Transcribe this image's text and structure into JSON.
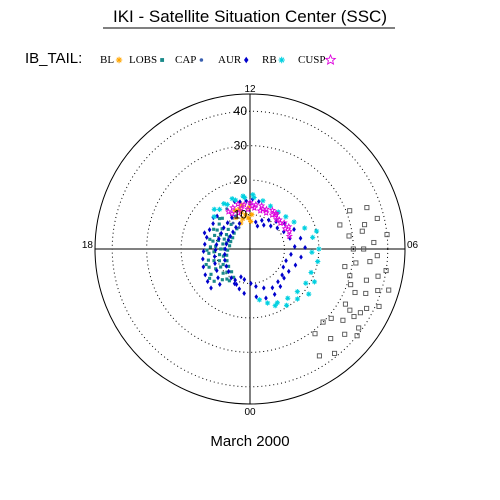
{
  "chart_data": {
    "type": "scatter",
    "projection": "polar",
    "title": "IKI - Satellite Situation Center (SSC)",
    "subtitle": "March 2000",
    "legend": {
      "prefix": "IB_TAIL:",
      "placement": "top-left"
    },
    "radial_axis": {
      "range": [
        0,
        45
      ],
      "ticks": [
        10,
        20,
        30,
        40
      ],
      "tick_labels": [
        "10",
        "20",
        "30",
        "40"
      ],
      "grid": "dotted"
    },
    "angular_axis": {
      "labels": [
        {
          "text": "12",
          "mlt": 12
        },
        {
          "text": "06",
          "mlt": 6
        },
        {
          "text": "00",
          "mlt": 0
        },
        {
          "text": "18",
          "mlt": 18
        }
      ]
    },
    "series": [
      {
        "name": "BL",
        "color": "#ffa500",
        "marker": "asterisk",
        "points": [
          [
            12.2,
            9
          ],
          [
            12.5,
            10
          ],
          [
            12.9,
            11
          ],
          [
            13.3,
            8
          ],
          [
            13.0,
            12
          ],
          [
            11.8,
            10
          ],
          [
            12.7,
            13
          ],
          [
            13.6,
            10
          ],
          [
            12.1,
            12
          ],
          [
            12.9,
            9
          ],
          [
            13.4,
            12
          ],
          [
            11.9,
            8
          ]
        ]
      },
      {
        "name": "LOBS",
        "color": "#1a8a8a",
        "marker": "square",
        "points": [
          [
            14.8,
            12
          ],
          [
            15.4,
            11.5
          ],
          [
            16.0,
            11
          ],
          [
            16.6,
            11
          ],
          [
            17.2,
            11
          ],
          [
            17.8,
            11.5
          ],
          [
            18.4,
            12
          ],
          [
            19.0,
            12.5
          ],
          [
            19.6,
            13
          ],
          [
            20.2,
            13.5
          ],
          [
            20.8,
            14
          ],
          [
            14.5,
            9
          ],
          [
            15.2,
            8.5
          ],
          [
            15.9,
            8
          ],
          [
            16.6,
            8
          ],
          [
            17.3,
            8
          ],
          [
            18.0,
            8.5
          ],
          [
            18.7,
            9
          ],
          [
            19.4,
            9.5
          ],
          [
            20.1,
            10
          ],
          [
            20.8,
            10.5
          ],
          [
            21.5,
            11
          ],
          [
            14.2,
            7
          ],
          [
            15.0,
            6.5
          ],
          [
            15.8,
            6
          ],
          [
            16.6,
            6
          ],
          [
            17.4,
            6
          ],
          [
            18.2,
            6.5
          ],
          [
            19.0,
            7
          ],
          [
            19.8,
            7.5
          ],
          [
            20.6,
            8
          ],
          [
            21.4,
            8.5
          ],
          [
            15.6,
            10
          ],
          [
            16.3,
            9.5
          ],
          [
            17.0,
            9.5
          ],
          [
            17.7,
            10
          ],
          [
            18.3,
            10.5
          ],
          [
            19.2,
            11
          ],
          [
            20.0,
            11.5
          ],
          [
            16.0,
            7
          ],
          [
            17.0,
            7
          ],
          [
            18.0,
            7.5
          ],
          [
            19.0,
            8
          ],
          [
            20.0,
            9
          ],
          [
            21.0,
            9.5
          ],
          [
            15.0,
            12.5
          ],
          [
            16.1,
            12
          ],
          [
            17.1,
            12
          ],
          [
            18.1,
            12.5
          ],
          [
            19.3,
            13.5
          ],
          [
            20.4,
            14.5
          ],
          [
            21.2,
            12
          ],
          [
            21.8,
            11
          ],
          [
            22.0,
            9.5
          ]
        ]
      },
      {
        "name": "CAP",
        "color": "#3a60b0",
        "marker": "dot",
        "points": [
          [
            14.0,
            13.5
          ],
          [
            13.6,
            10.5
          ],
          [
            14.2,
            9
          ],
          [
            13.8,
            7
          ]
        ]
      },
      {
        "name": "AUR",
        "color": "#0000cc",
        "marker": "diamond",
        "points": [
          [
            15.0,
            13.5
          ],
          [
            15.7,
            13
          ],
          [
            16.3,
            13
          ],
          [
            17.0,
            13
          ],
          [
            17.6,
            13.2
          ],
          [
            18.2,
            13.5
          ],
          [
            18.8,
            14
          ],
          [
            19.4,
            14.5
          ],
          [
            20.0,
            15
          ],
          [
            20.5,
            15.5
          ],
          [
            21.0,
            16
          ],
          [
            14.0,
            10.5
          ],
          [
            14.7,
            10
          ],
          [
            15.4,
            9.8
          ],
          [
            16.1,
            9.5
          ],
          [
            16.8,
            9.5
          ],
          [
            17.5,
            9.8
          ],
          [
            18.1,
            10
          ],
          [
            18.8,
            10.5
          ],
          [
            19.5,
            11
          ],
          [
            20.2,
            11.5
          ],
          [
            20.8,
            12.5
          ],
          [
            21.3,
            13.5
          ],
          [
            13.5,
            8
          ],
          [
            14.2,
            7.5
          ],
          [
            15.0,
            7
          ],
          [
            15.8,
            6.8
          ],
          [
            16.5,
            6.8
          ],
          [
            17.2,
            7
          ],
          [
            18.0,
            7.2
          ],
          [
            18.8,
            7.5
          ],
          [
            19.6,
            8
          ],
          [
            20.4,
            8.5
          ],
          [
            21.1,
            9
          ],
          [
            21.8,
            10
          ],
          [
            22.4,
            11
          ],
          [
            11.2,
            8
          ],
          [
            10.5,
            9
          ],
          [
            9.8,
            10
          ],
          [
            9.1,
            11
          ],
          [
            8.4,
            12.5
          ],
          [
            7.6,
            14
          ],
          [
            6.8,
            15
          ],
          [
            6.1,
            16
          ],
          [
            5.4,
            15
          ],
          [
            4.7,
            14
          ],
          [
            4.0,
            13
          ],
          [
            3.3,
            13
          ],
          [
            2.6,
            14
          ],
          [
            1.9,
            15
          ],
          [
            1.2,
            15
          ],
          [
            0.5,
            14
          ],
          [
            23.5,
            13
          ],
          [
            23.0,
            12
          ],
          [
            22.6,
            11
          ],
          [
            22.3,
            10
          ],
          [
            10.8,
            7
          ],
          [
            10.0,
            8
          ],
          [
            9.2,
            9
          ],
          [
            8.5,
            10
          ],
          [
            7.8,
            11
          ],
          [
            7.0,
            12
          ],
          [
            6.2,
            13
          ],
          [
            5.5,
            12
          ],
          [
            4.8,
            11
          ],
          [
            4.1,
            11
          ],
          [
            3.4,
            12
          ],
          [
            2.7,
            12.5
          ],
          [
            2.0,
            13
          ],
          [
            1.3,
            12
          ],
          [
            0.6,
            11
          ],
          [
            0.1,
            10
          ],
          [
            23.3,
            9
          ],
          [
            22.8,
            8.5
          ],
          [
            12.8,
            14
          ],
          [
            12.3,
            14
          ],
          [
            11.8,
            14.5
          ],
          [
            11.3,
            14
          ],
          [
            16.7,
            14
          ],
          [
            15.3,
            14
          ],
          [
            13.2,
            14.5
          ]
        ]
      },
      {
        "name": "RB",
        "color": "#00d0e0",
        "marker": "asterisk",
        "points": [
          [
            14.5,
            14.5
          ],
          [
            13.8,
            14.5
          ],
          [
            13.1,
            14.8
          ],
          [
            12.4,
            15
          ],
          [
            11.7,
            15
          ],
          [
            11.0,
            14.5
          ],
          [
            10.3,
            13.8
          ],
          [
            9.5,
            13.5
          ],
          [
            8.8,
            14
          ],
          [
            8.1,
            15
          ],
          [
            7.4,
            17
          ],
          [
            6.7,
            18.5
          ],
          [
            6.0,
            20
          ],
          [
            5.3,
            20
          ],
          [
            4.6,
            19
          ],
          [
            3.9,
            19
          ],
          [
            3.2,
            18.5
          ],
          [
            2.5,
            18
          ],
          [
            1.8,
            17.5
          ],
          [
            1.2,
            16.5
          ],
          [
            0.7,
            15
          ],
          [
            14.8,
            15.5
          ],
          [
            14.0,
            15.2
          ],
          [
            13.3,
            15.5
          ],
          [
            12.5,
            15.5
          ],
          [
            11.8,
            15.8
          ],
          [
            15.2,
            14
          ],
          [
            7.0,
            20
          ],
          [
            5.8,
            18
          ],
          [
            4.2,
            21
          ],
          [
            3.5,
            21.5
          ],
          [
            2.9,
            20
          ],
          [
            2.2,
            19.5
          ],
          [
            1.6,
            18
          ]
        ]
      },
      {
        "name": "CUSP",
        "color": "#dd00dd",
        "marker": "star",
        "points": [
          [
            13.5,
            13
          ],
          [
            13.0,
            13.5
          ],
          [
            12.5,
            13
          ],
          [
            12.0,
            13.5
          ],
          [
            11.5,
            13
          ],
          [
            11.0,
            13
          ],
          [
            10.5,
            12.5
          ],
          [
            10.0,
            13
          ],
          [
            9.5,
            12.5
          ],
          [
            9.0,
            12
          ],
          [
            8.5,
            12.5
          ],
          [
            8.0,
            13
          ],
          [
            7.6,
            12.5
          ],
          [
            7.2,
            12
          ],
          [
            12.8,
            12
          ],
          [
            12.2,
            11.5
          ],
          [
            11.6,
            12
          ],
          [
            11.0,
            11.5
          ],
          [
            10.4,
            11.5
          ],
          [
            9.8,
            11.8
          ],
          [
            9.2,
            11.5
          ],
          [
            14.0,
            12.5
          ],
          [
            13.8,
            11.5
          ],
          [
            13.2,
            11
          ],
          [
            11.8,
            12.5
          ],
          [
            10.8,
            12.2
          ],
          [
            9.6,
            12.8
          ],
          [
            8.7,
            11.6
          ],
          [
            8.0,
            11.8
          ]
        ]
      },
      {
        "color": "#555555",
        "marker": "open-square",
        "points": [
          [
            7.0,
            27
          ],
          [
            6.5,
            29
          ],
          [
            6.0,
            30
          ],
          [
            5.5,
            31
          ],
          [
            5.0,
            30
          ],
          [
            4.5,
            33
          ],
          [
            4.0,
            32
          ],
          [
            3.5,
            34
          ],
          [
            3.0,
            30
          ],
          [
            2.5,
            31
          ],
          [
            6.8,
            34
          ],
          [
            6.2,
            36
          ],
          [
            5.8,
            37
          ],
          [
            5.2,
            38
          ],
          [
            4.8,
            39
          ],
          [
            4.2,
            38
          ],
          [
            3.8,
            36
          ],
          [
            3.2,
            37
          ],
          [
            2.8,
            35
          ],
          [
            7.4,
            31
          ],
          [
            6.6,
            33
          ],
          [
            5.6,
            35
          ],
          [
            4.6,
            36
          ],
          [
            3.6,
            39
          ],
          [
            6.9,
            38
          ],
          [
            5.4,
            40
          ],
          [
            4.4,
            41
          ],
          [
            3.4,
            40
          ],
          [
            2.6,
            39
          ],
          [
            7.3,
            36
          ],
          [
            6.0,
            33
          ],
          [
            5.0,
            35
          ],
          [
            4.0,
            37
          ],
          [
            5.3,
            28
          ],
          [
            4.7,
            31
          ],
          [
            3.9,
            34
          ],
          [
            3.3,
            31
          ],
          [
            2.2,
            37
          ],
          [
            6.4,
            40
          ],
          [
            4.9,
            42
          ]
        ]
      }
    ]
  }
}
